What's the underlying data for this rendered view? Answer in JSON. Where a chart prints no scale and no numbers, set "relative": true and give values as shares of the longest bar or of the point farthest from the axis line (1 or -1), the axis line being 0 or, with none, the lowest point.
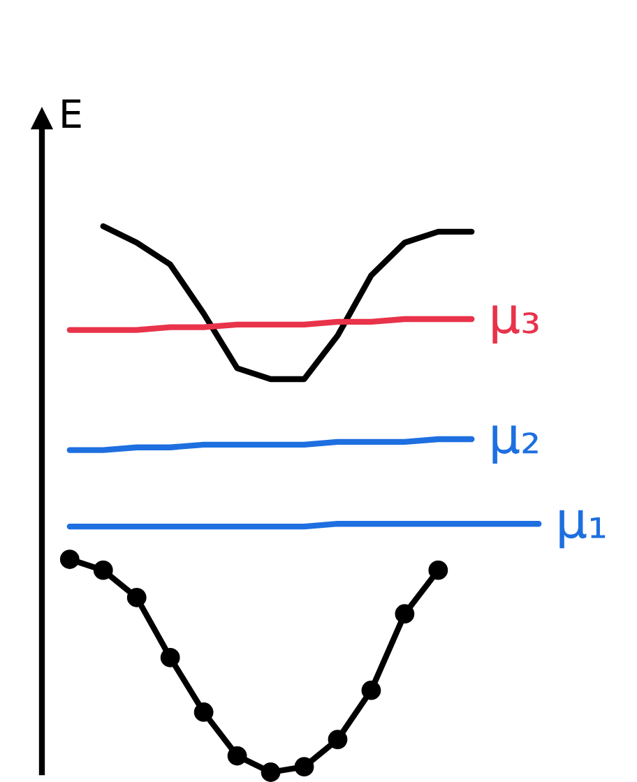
{
  "chart_data": {
    "type": "line",
    "relative": true,
    "ylabel": "E",
    "legend": false,
    "categories": [
      null,
      null,
      null,
      null,
      null,
      null,
      null,
      null,
      null,
      null,
      null,
      null,
      null,
      null,
      null
    ],
    "series": [
      {
        "color": "#000000",
        "values": [
          null,
          1.0,
          0.97,
          0.93,
          0.84,
          0.74,
          0.72,
          0.72,
          0.8,
          0.91,
          0.97,
          0.99,
          0.99,
          null,
          null
        ]
      },
      {
        "name": "μ₃",
        "color": "#e8334a",
        "values": [
          0.81,
          0.81,
          0.81,
          0.815,
          0.815,
          0.82,
          0.82,
          0.82,
          0.825,
          0.825,
          0.83,
          0.83,
          0.83,
          null,
          null
        ]
      },
      {
        "name": "μ₂",
        "color": "#1e6fe0",
        "values": [
          0.59,
          0.59,
          0.595,
          0.595,
          0.6,
          0.6,
          0.6,
          0.6,
          0.605,
          0.605,
          0.605,
          0.61,
          0.61,
          null,
          null
        ]
      },
      {
        "name": "μ₁",
        "color": "#1e6fe0",
        "values": [
          0.45,
          0.45,
          0.45,
          0.45,
          0.45,
          0.45,
          0.45,
          0.45,
          0.455,
          0.455,
          0.455,
          0.455,
          0.455,
          0.455,
          0.455
        ]
      },
      {
        "color": "#000000",
        "marker": "circle",
        "values": [
          0.39,
          0.37,
          0.32,
          0.21,
          0.11,
          0.03,
          0.0,
          0.01,
          0.06,
          0.15,
          0.29,
          0.37,
          null,
          null,
          null
        ]
      }
    ]
  }
}
